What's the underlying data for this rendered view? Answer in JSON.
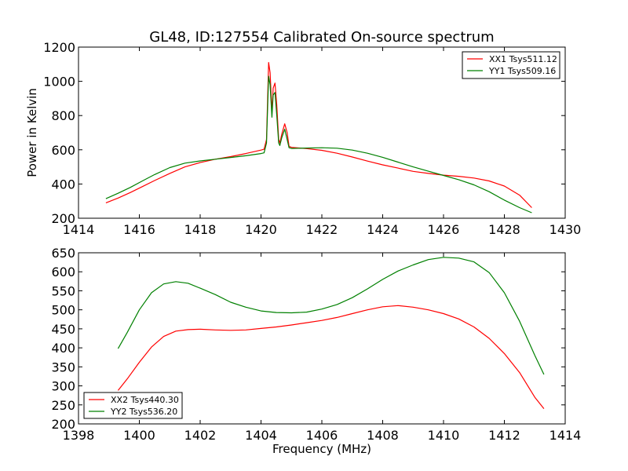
{
  "figure": {
    "title": "GL48, ID:127554 Calibrated On-source spectrum"
  },
  "chart_data": [
    {
      "type": "line",
      "xlabel": "",
      "ylabel": "Power in Kelvin",
      "xlim": [
        1414,
        1430
      ],
      "ylim": [
        200,
        1200
      ],
      "xticks": [
        1414,
        1416,
        1418,
        1420,
        1422,
        1424,
        1426,
        1428,
        1430
      ],
      "yticks": [
        200,
        400,
        600,
        800,
        1000,
        1200
      ],
      "legend": {
        "placement": "top-right"
      },
      "grid": false,
      "series": [
        {
          "name": "XX1 Tsys511.12",
          "color": "#ff0000",
          "points": [
            [
              1414.9,
              290
            ],
            [
              1415.3,
              318
            ],
            [
              1415.7,
              350
            ],
            [
              1416.1,
              385
            ],
            [
              1416.5,
              420
            ],
            [
              1417.0,
              462
            ],
            [
              1417.5,
              500
            ],
            [
              1418.0,
              525
            ],
            [
              1418.5,
              545
            ],
            [
              1419.0,
              560
            ],
            [
              1419.5,
              578
            ],
            [
              1420.0,
              598
            ],
            [
              1420.1,
              603
            ],
            [
              1420.18,
              660
            ],
            [
              1420.25,
              1110
            ],
            [
              1420.3,
              1050
            ],
            [
              1420.36,
              820
            ],
            [
              1420.4,
              960
            ],
            [
              1420.46,
              990
            ],
            [
              1420.52,
              860
            ],
            [
              1420.58,
              660
            ],
            [
              1420.62,
              640
            ],
            [
              1420.68,
              690
            ],
            [
              1420.78,
              752
            ],
            [
              1420.86,
              700
            ],
            [
              1420.92,
              620
            ],
            [
              1421.0,
              614
            ],
            [
              1421.5,
              607
            ],
            [
              1422.0,
              597
            ],
            [
              1422.5,
              580
            ],
            [
              1423.0,
              558
            ],
            [
              1423.5,
              534
            ],
            [
              1424.0,
              512
            ],
            [
              1424.5,
              493
            ],
            [
              1425.0,
              474
            ],
            [
              1425.5,
              462
            ],
            [
              1426.0,
              452
            ],
            [
              1426.5,
              445
            ],
            [
              1427.0,
              435
            ],
            [
              1427.5,
              418
            ],
            [
              1428.0,
              388
            ],
            [
              1428.5,
              335
            ],
            [
              1428.9,
              262
            ]
          ]
        },
        {
          "name": "YY1 Tsys509.16",
          "color": "#008000",
          "points": [
            [
              1414.9,
              314
            ],
            [
              1415.3,
              346
            ],
            [
              1415.7,
              380
            ],
            [
              1416.1,
              418
            ],
            [
              1416.5,
              455
            ],
            [
              1417.0,
              496
            ],
            [
              1417.5,
              522
            ],
            [
              1418.0,
              535
            ],
            [
              1418.5,
              545
            ],
            [
              1419.0,
              555
            ],
            [
              1419.5,
              565
            ],
            [
              1420.0,
              578
            ],
            [
              1420.1,
              582
            ],
            [
              1420.18,
              640
            ],
            [
              1420.25,
              1030
            ],
            [
              1420.3,
              980
            ],
            [
              1420.36,
              790
            ],
            [
              1420.4,
              920
            ],
            [
              1420.46,
              935
            ],
            [
              1420.52,
              800
            ],
            [
              1420.58,
              640
            ],
            [
              1420.62,
              625
            ],
            [
              1420.68,
              670
            ],
            [
              1420.78,
              720
            ],
            [
              1420.86,
              660
            ],
            [
              1420.92,
              612
            ],
            [
              1421.0,
              608
            ],
            [
              1421.5,
              610
            ],
            [
              1422.0,
              612
            ],
            [
              1422.5,
              609
            ],
            [
              1423.0,
              598
            ],
            [
              1423.5,
              580
            ],
            [
              1424.0,
              556
            ],
            [
              1424.5,
              528
            ],
            [
              1425.0,
              500
            ],
            [
              1425.5,
              475
            ],
            [
              1426.0,
              450
            ],
            [
              1426.5,
              425
            ],
            [
              1427.0,
              395
            ],
            [
              1427.5,
              355
            ],
            [
              1428.0,
              306
            ],
            [
              1428.5,
              262
            ],
            [
              1428.9,
              232
            ]
          ]
        }
      ]
    },
    {
      "type": "line",
      "xlabel": "Frequency (MHz)",
      "ylabel": "",
      "xlim": [
        1398,
        1414
      ],
      "ylim": [
        200,
        650
      ],
      "xticks": [
        1398,
        1400,
        1402,
        1404,
        1406,
        1408,
        1410,
        1412,
        1414
      ],
      "yticks": [
        200,
        250,
        300,
        350,
        400,
        450,
        500,
        550,
        600,
        650
      ],
      "legend": {
        "placement": "bottom-left"
      },
      "grid": false,
      "series": [
        {
          "name": "XX2 Tsys440.30",
          "color": "#ff0000",
          "points": [
            [
              1399.3,
              288
            ],
            [
              1399.6,
              318
            ],
            [
              1400.0,
              362
            ],
            [
              1400.4,
              402
            ],
            [
              1400.8,
              430
            ],
            [
              1401.2,
              444
            ],
            [
              1401.6,
              448
            ],
            [
              1402.0,
              449
            ],
            [
              1402.5,
              447
            ],
            [
              1403.0,
              446
            ],
            [
              1403.5,
              447
            ],
            [
              1404.0,
              451
            ],
            [
              1404.5,
              455
            ],
            [
              1405.0,
              460
            ],
            [
              1405.5,
              466
            ],
            [
              1406.0,
              472
            ],
            [
              1406.5,
              480
            ],
            [
              1407.0,
              490
            ],
            [
              1407.5,
              500
            ],
            [
              1408.0,
              508
            ],
            [
              1408.5,
              511
            ],
            [
              1409.0,
              507
            ],
            [
              1409.5,
              500
            ],
            [
              1410.0,
              490
            ],
            [
              1410.5,
              476
            ],
            [
              1411.0,
              455
            ],
            [
              1411.5,
              425
            ],
            [
              1412.0,
              385
            ],
            [
              1412.5,
              335
            ],
            [
              1413.0,
              270
            ],
            [
              1413.3,
              240
            ]
          ]
        },
        {
          "name": "YY2 Tsys536.20",
          "color": "#008000",
          "points": [
            [
              1399.3,
              398
            ],
            [
              1399.6,
              440
            ],
            [
              1400.0,
              500
            ],
            [
              1400.4,
              545
            ],
            [
              1400.8,
              568
            ],
            [
              1401.2,
              574
            ],
            [
              1401.6,
              570
            ],
            [
              1402.0,
              557
            ],
            [
              1402.5,
              540
            ],
            [
              1403.0,
              520
            ],
            [
              1403.5,
              507
            ],
            [
              1404.0,
              497
            ],
            [
              1404.5,
              493
            ],
            [
              1405.0,
              492
            ],
            [
              1405.5,
              494
            ],
            [
              1406.0,
              502
            ],
            [
              1406.5,
              514
            ],
            [
              1407.0,
              532
            ],
            [
              1407.5,
              555
            ],
            [
              1408.0,
              580
            ],
            [
              1408.5,
              602
            ],
            [
              1409.0,
              618
            ],
            [
              1409.5,
              632
            ],
            [
              1410.0,
              638
            ],
            [
              1410.5,
              636
            ],
            [
              1411.0,
              626
            ],
            [
              1411.5,
              598
            ],
            [
              1412.0,
              545
            ],
            [
              1412.5,
              470
            ],
            [
              1413.0,
              380
            ],
            [
              1413.3,
              330
            ]
          ]
        }
      ]
    }
  ]
}
